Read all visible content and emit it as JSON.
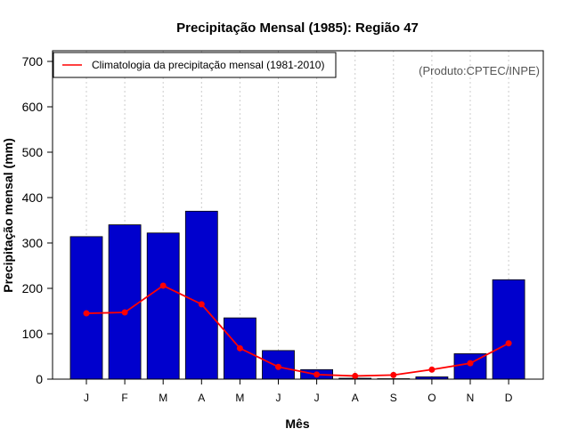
{
  "chart_data": {
    "type": "bar",
    "title": "Precipitação Mensal (1985): Região 47",
    "xlabel": "Mês",
    "ylabel": "Precipitação mensal (mm)",
    "ylim": [
      0,
      700
    ],
    "yticks": [
      0,
      100,
      200,
      300,
      400,
      500,
      600,
      700
    ],
    "categories": [
      "J",
      "F",
      "M",
      "A",
      "M",
      "J",
      "J",
      "A",
      "S",
      "O",
      "N",
      "D"
    ],
    "series": [
      {
        "name": "Precipitação mensal (1985)",
        "kind": "bar",
        "color": "#0000CD",
        "values": [
          314,
          340,
          322,
          370,
          135,
          63,
          21,
          2,
          1,
          5,
          56,
          219
        ]
      },
      {
        "name": "Climatologia da precipitação mensal (1981-2010)",
        "kind": "line",
        "color": "#FF0000",
        "values": [
          145,
          147,
          206,
          165,
          68,
          27,
          10,
          7,
          9,
          21,
          35,
          79
        ]
      }
    ],
    "legend": {
      "label": "Climatologia da precipitação mensal (1981-2010)",
      "placement": "top-left"
    },
    "credit": "(Produto:CPTEC/INPE)",
    "grid": "vertical-dotted"
  }
}
